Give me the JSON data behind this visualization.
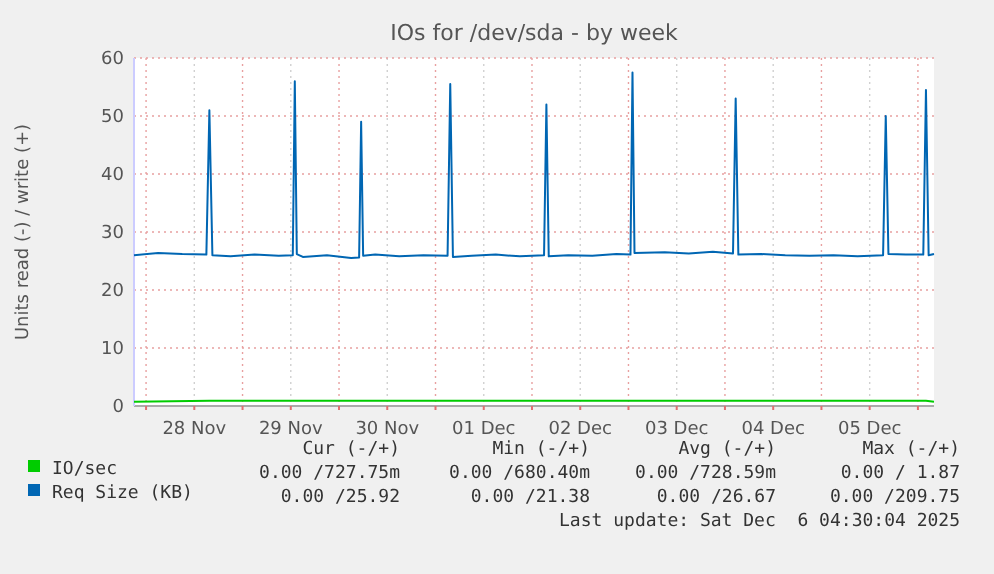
{
  "chart_data": {
    "type": "line",
    "title": "IOs for /dev/sda - by week",
    "ylabel": "Units read (-) / write (+)",
    "xlim": [
      "2025-11-27T21:00",
      "2025-12-06T04:00"
    ],
    "xticks": [
      {
        "value": "2025-11-28T00:00",
        "label": null
      },
      {
        "value": "2025-11-28T12:00",
        "label": "28 Nov"
      },
      {
        "value": "2025-11-29T00:00",
        "label": null
      },
      {
        "value": "2025-11-29T12:00",
        "label": "29 Nov"
      },
      {
        "value": "2025-11-30T00:00",
        "label": null
      },
      {
        "value": "2025-11-30T12:00",
        "label": "30 Nov"
      },
      {
        "value": "2025-12-01T00:00",
        "label": null
      },
      {
        "value": "2025-12-01T12:00",
        "label": "01 Dec"
      },
      {
        "value": "2025-12-02T00:00",
        "label": null
      },
      {
        "value": "2025-12-02T12:00",
        "label": "02 Dec"
      },
      {
        "value": "2025-12-03T00:00",
        "label": null
      },
      {
        "value": "2025-12-03T12:00",
        "label": "03 Dec"
      },
      {
        "value": "2025-12-04T00:00",
        "label": null
      },
      {
        "value": "2025-12-04T12:00",
        "label": "04 Dec"
      },
      {
        "value": "2025-12-05T00:00",
        "label": null
      },
      {
        "value": "2025-12-05T12:00",
        "label": "05 Dec"
      },
      {
        "value": "2025-12-06T00:00",
        "label": null
      }
    ],
    "ylim": [
      0,
      60
    ],
    "yticks": [
      0,
      10,
      20,
      30,
      40,
      50,
      60
    ],
    "grid": true,
    "legend": "bottom",
    "series": [
      {
        "name": "IO/sec",
        "color": "#00cc00",
        "x": [
          "2025-11-27T21:00",
          "2025-11-28T15:45",
          "2025-11-29T13:00",
          "2025-11-30T05:30",
          "2025-12-01T03:40",
          "2025-12-03T01:00",
          "2025-12-04T02:40",
          "2025-12-05T16:00",
          "2025-12-06T02:00",
          "2025-12-06T04:00"
        ],
        "values": [
          0.73,
          0.9,
          0.9,
          0.9,
          0.9,
          0.9,
          0.9,
          0.9,
          0.9,
          0.73
        ]
      },
      {
        "name": "Req Size (KB)",
        "color": "#0066b3",
        "x": [
          "2025-11-27T21:00",
          "2025-11-28T03:00",
          "2025-11-28T09:00",
          "2025-11-28T15:00",
          "2025-11-28T15:45",
          "2025-11-28T16:30",
          "2025-11-28T21:00",
          "2025-11-29T03:00",
          "2025-11-29T09:00",
          "2025-11-29T12:30",
          "2025-11-29T13:00",
          "2025-11-29T13:30",
          "2025-11-29T15:00",
          "2025-11-29T21:00",
          "2025-11-30T03:00",
          "2025-11-30T05:00",
          "2025-11-30T05:30",
          "2025-11-30T06:00",
          "2025-11-30T09:00",
          "2025-11-30T15:00",
          "2025-11-30T21:00",
          "2025-12-01T03:00",
          "2025-12-01T03:40",
          "2025-12-01T04:20",
          "2025-12-01T09:00",
          "2025-12-01T15:00",
          "2025-12-01T21:00",
          "2025-12-02T03:00",
          "2025-12-02T03:35",
          "2025-12-02T04:10",
          "2025-12-02T09:00",
          "2025-12-02T15:00",
          "2025-12-02T21:00",
          "2025-12-03T00:30",
          "2025-12-03T01:00",
          "2025-12-03T01:30",
          "2025-12-03T09:00",
          "2025-12-03T15:00",
          "2025-12-03T21:00",
          "2025-12-04T02:00",
          "2025-12-04T02:40",
          "2025-12-04T03:20",
          "2025-12-04T09:00",
          "2025-12-04T15:00",
          "2025-12-04T21:00",
          "2025-12-05T03:00",
          "2025-12-05T09:00",
          "2025-12-05T15:20",
          "2025-12-05T16:00",
          "2025-12-05T16:40",
          "2025-12-05T21:00",
          "2025-12-06T01:20",
          "2025-12-06T02:00",
          "2025-12-06T02:40",
          "2025-12-06T04:00"
        ],
        "values": [
          26.0,
          26.4,
          26.2,
          26.1,
          51,
          26.0,
          25.8,
          26.1,
          25.9,
          26.0,
          56,
          26.2,
          25.7,
          26.0,
          25.5,
          25.6,
          49,
          25.9,
          26.1,
          25.8,
          26.0,
          25.9,
          55.5,
          25.7,
          25.9,
          26.1,
          25.8,
          26.0,
          52,
          25.8,
          26.0,
          25.9,
          26.2,
          26.1,
          57.5,
          26.4,
          26.5,
          26.3,
          26.6,
          26.3,
          53,
          26.1,
          26.2,
          26.0,
          25.9,
          26.0,
          25.8,
          26.0,
          50,
          26.2,
          26.1,
          26.1,
          54.5,
          26.0,
          26.2
        ]
      }
    ],
    "annotations": [
      "Cur (-/+)",
      "Min (-/+)",
      "Avg (-/+)",
      "Max (-/+)",
      "0.00 /727.75m",
      "0.00 /680.40m",
      "0.00 /728.59m",
      "0.00 / 1.87",
      "0.00 /25.92",
      "0.00 /21.38",
      "0.00 /26.67",
      "0.00 /209.75",
      "Last update: Sat Dec  6 04:30:04 2025"
    ]
  }
}
